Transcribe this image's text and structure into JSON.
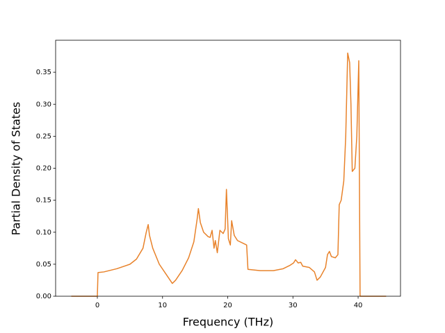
{
  "chart_data": {
    "type": "line",
    "xlabel": "Frequency (THz)",
    "ylabel": "Partial Density of States",
    "x": [
      -4,
      0,
      0.1,
      1,
      3,
      5,
      6,
      7,
      7.5,
      7.8,
      8,
      8.5,
      9.5,
      10.5,
      11.5,
      12,
      13,
      14,
      14.8,
      15.3,
      15.5,
      15.8,
      16.3,
      17,
      17.3,
      17.6,
      17.9,
      18.1,
      18.4,
      18.8,
      19.3,
      19.6,
      19.8,
      20.1,
      20.4,
      20.6,
      21,
      21.5,
      22.5,
      22.9,
      23.1,
      25,
      27,
      28.5,
      29.5,
      30.1,
      30.4,
      30.8,
      31.2,
      31.5,
      32.5,
      33.3,
      33.7,
      34.2,
      35,
      35.3,
      35.6,
      35.9,
      36.5,
      36.9,
      37.1,
      37.4,
      37.8,
      38.1,
      38.4,
      38.7,
      38.9,
      39.1,
      39.5,
      39.8,
      40.1,
      40.3,
      44.3
    ],
    "series": [
      {
        "color": "#e8822a",
        "values": [
          0,
          0,
          0.037,
          0.038,
          0.043,
          0.05,
          0.058,
          0.075,
          0.1,
          0.112,
          0.095,
          0.075,
          0.05,
          0.035,
          0.02,
          0.025,
          0.04,
          0.06,
          0.085,
          0.12,
          0.137,
          0.115,
          0.1,
          0.093,
          0.092,
          0.103,
          0.075,
          0.087,
          0.068,
          0.103,
          0.098,
          0.105,
          0.167,
          0.09,
          0.08,
          0.118,
          0.095,
          0.087,
          0.082,
          0.08,
          0.042,
          0.04,
          0.04,
          0.043,
          0.048,
          0.052,
          0.057,
          0.052,
          0.053,
          0.047,
          0.045,
          0.038,
          0.025,
          0.03,
          0.045,
          0.065,
          0.07,
          0.062,
          0.06,
          0.065,
          0.143,
          0.15,
          0.18,
          0.25,
          0.38,
          0.365,
          0.3,
          0.195,
          0.2,
          0.25,
          0.368,
          0,
          0
        ]
      }
    ],
    "xlim": [
      -6.4,
      46.5
    ],
    "xticks": [
      0,
      10,
      20,
      30,
      40
    ],
    "ylim": [
      0,
      0.4
    ],
    "yticks": [
      {
        "value": 0,
        "label": "0.00"
      },
      {
        "value": 0.05,
        "label": "0.05"
      },
      {
        "value": 0.1,
        "label": "0.10"
      },
      {
        "value": 0.15,
        "label": "0.15"
      },
      {
        "value": 0.2,
        "label": "0.20"
      },
      {
        "value": 0.25,
        "label": "0.25"
      },
      {
        "value": 0.3,
        "label": "0.30"
      },
      {
        "value": 0.35,
        "label": "0.35"
      }
    ]
  }
}
